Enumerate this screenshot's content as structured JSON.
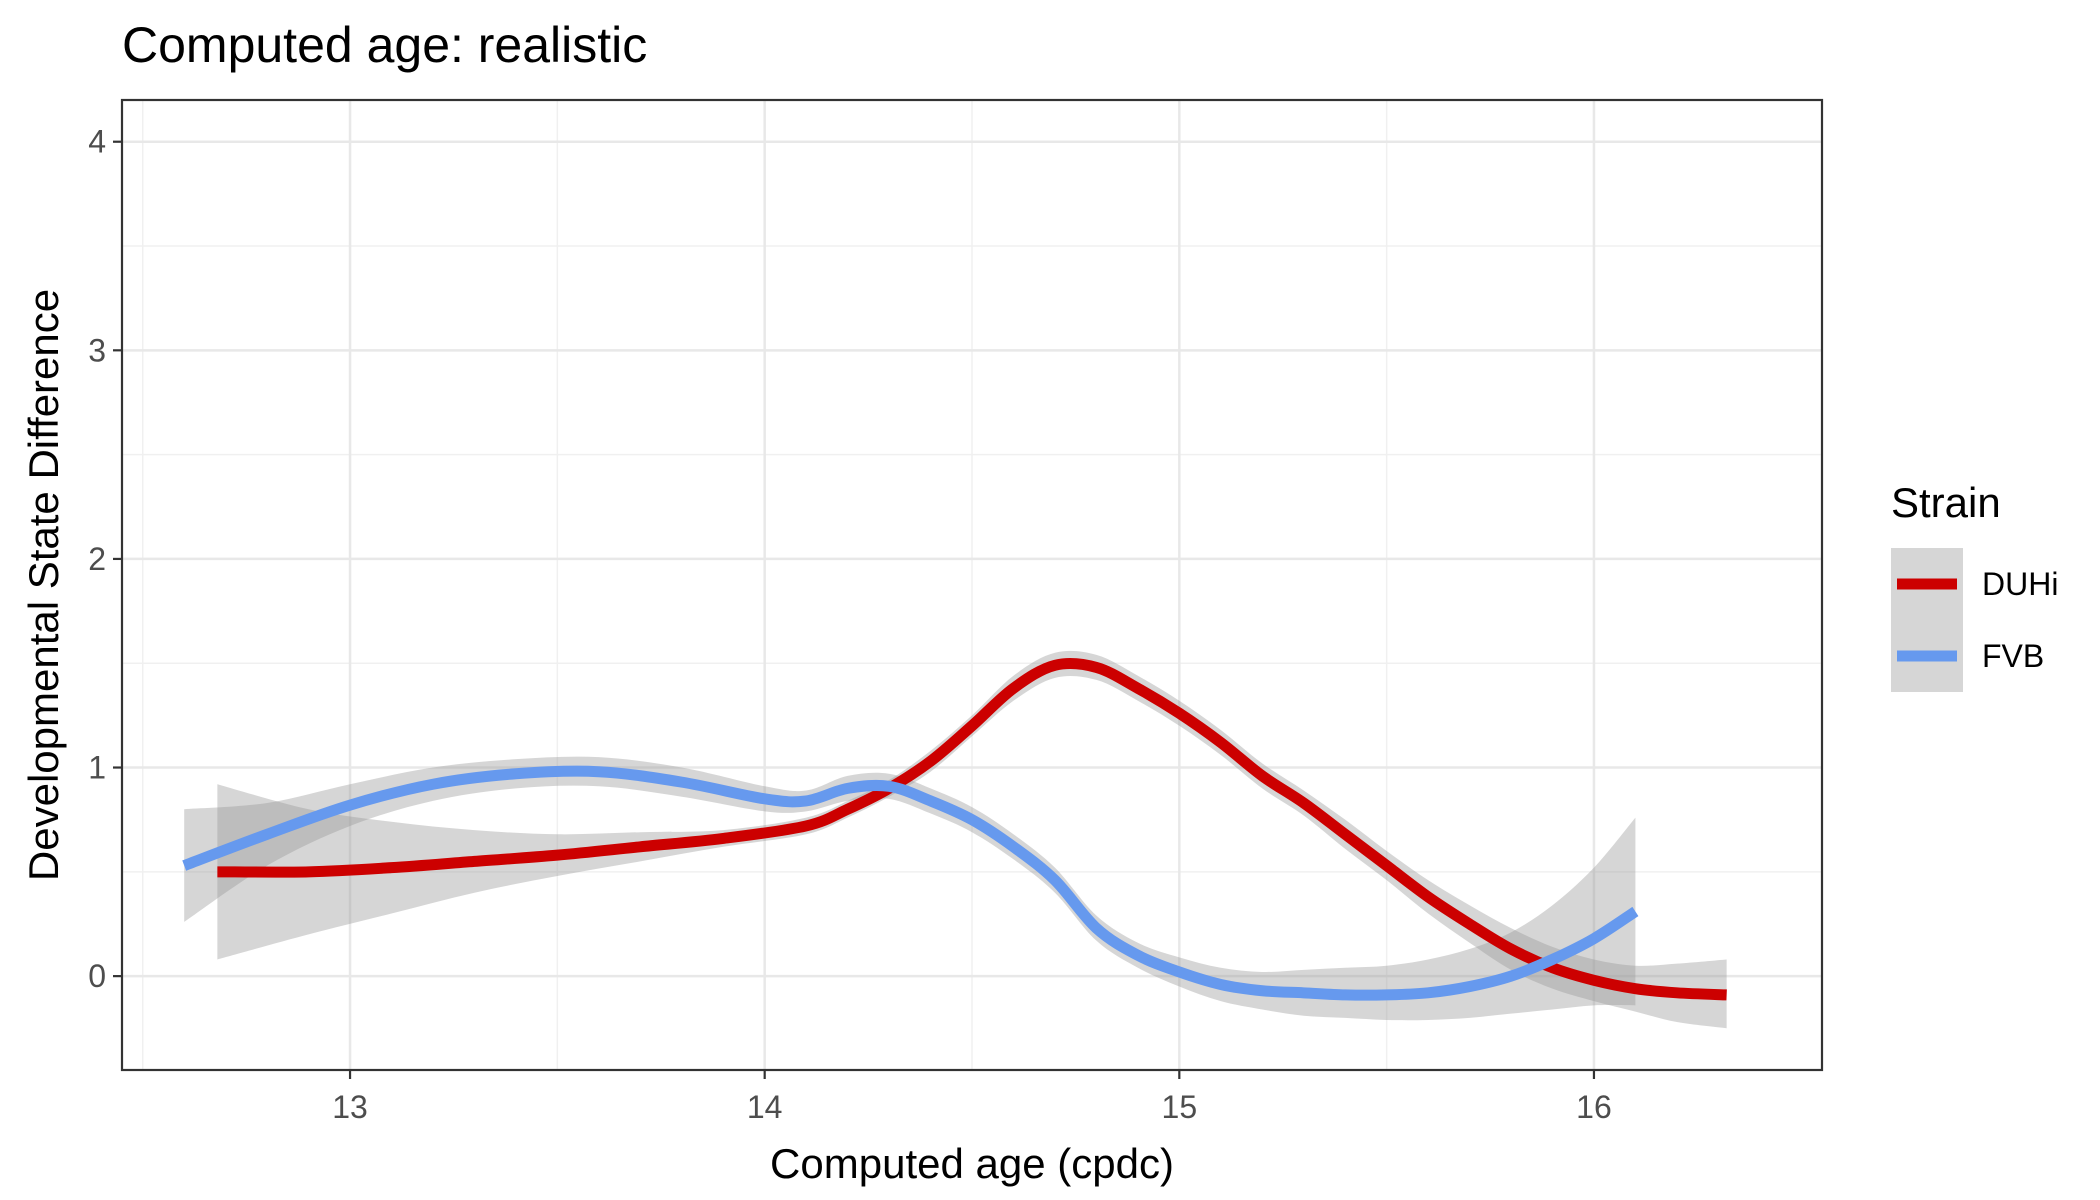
{
  "chart_data": {
    "type": "line",
    "title": "Computed age: realistic",
    "xlabel": "Computed age (cpdc)",
    "ylabel": "Developmental State Difference",
    "xlim": [
      12.45,
      16.55
    ],
    "ylim": [
      -0.45,
      4.2
    ],
    "x_ticks": [
      13,
      14,
      15,
      16
    ],
    "x_tick_labels": [
      "13",
      "14",
      "15",
      "16"
    ],
    "x_minor_ticks": [
      12.5,
      13.5,
      14.5,
      15.5
    ],
    "y_ticks": [
      0,
      1,
      2,
      3,
      4
    ],
    "y_tick_labels": [
      "0",
      "1",
      "2",
      "3",
      "4"
    ],
    "y_minor_ticks": [
      0.5,
      1.5,
      2.5,
      3.5
    ],
    "grid": true,
    "legend": {
      "title": "Strain",
      "position": "right"
    },
    "series": [
      {
        "name": "DUHi",
        "color": "#cc0000",
        "x": [
          12.68,
          12.9,
          13.1,
          13.3,
          13.5,
          13.7,
          13.9,
          14.1,
          14.2,
          14.3,
          14.4,
          14.5,
          14.6,
          14.7,
          14.8,
          14.9,
          15.0,
          15.1,
          15.2,
          15.3,
          15.4,
          15.5,
          15.6,
          15.7,
          15.8,
          15.9,
          16.0,
          16.1,
          16.2,
          16.32
        ],
        "y": [
          0.5,
          0.5,
          0.52,
          0.55,
          0.58,
          0.62,
          0.66,
          0.72,
          0.8,
          0.9,
          1.03,
          1.2,
          1.38,
          1.49,
          1.48,
          1.38,
          1.26,
          1.12,
          0.96,
          0.83,
          0.68,
          0.53,
          0.38,
          0.25,
          0.13,
          0.04,
          -0.02,
          -0.06,
          -0.08,
          -0.09
        ],
        "lower": [
          0.08,
          0.2,
          0.3,
          0.4,
          0.48,
          0.55,
          0.62,
          0.68,
          0.76,
          0.86,
          0.98,
          1.15,
          1.32,
          1.43,
          1.42,
          1.32,
          1.2,
          1.06,
          0.9,
          0.77,
          0.61,
          0.46,
          0.3,
          0.16,
          0.03,
          -0.06,
          -0.12,
          -0.17,
          -0.22,
          -0.25
        ],
        "upper": [
          0.92,
          0.8,
          0.74,
          0.7,
          0.68,
          0.69,
          0.7,
          0.76,
          0.84,
          0.94,
          1.08,
          1.25,
          1.44,
          1.55,
          1.54,
          1.44,
          1.32,
          1.18,
          1.02,
          0.89,
          0.75,
          0.6,
          0.46,
          0.34,
          0.23,
          0.14,
          0.08,
          0.05,
          0.06,
          0.08
        ]
      },
      {
        "name": "FVB",
        "color": "#6699ee",
        "x": [
          12.6,
          12.8,
          13.0,
          13.2,
          13.4,
          13.6,
          13.8,
          14.0,
          14.1,
          14.2,
          14.3,
          14.4,
          14.5,
          14.6,
          14.7,
          14.8,
          14.9,
          15.0,
          15.1,
          15.2,
          15.3,
          15.4,
          15.5,
          15.6,
          15.7,
          15.8,
          15.9,
          16.0,
          16.1
        ],
        "y": [
          0.53,
          0.68,
          0.82,
          0.92,
          0.97,
          0.98,
          0.93,
          0.85,
          0.84,
          0.9,
          0.91,
          0.84,
          0.75,
          0.62,
          0.46,
          0.23,
          0.1,
          0.02,
          -0.04,
          -0.07,
          -0.08,
          -0.09,
          -0.09,
          -0.08,
          -0.05,
          0.0,
          0.08,
          0.18,
          0.31
        ],
        "lower": [
          0.26,
          0.53,
          0.72,
          0.84,
          0.9,
          0.91,
          0.86,
          0.79,
          0.79,
          0.84,
          0.85,
          0.78,
          0.69,
          0.56,
          0.4,
          0.17,
          0.04,
          -0.05,
          -0.12,
          -0.16,
          -0.19,
          -0.2,
          -0.21,
          -0.21,
          -0.2,
          -0.18,
          -0.16,
          -0.14,
          -0.14
        ],
        "upper": [
          0.8,
          0.83,
          0.92,
          1.0,
          1.04,
          1.05,
          1.0,
          0.91,
          0.89,
          0.96,
          0.97,
          0.9,
          0.81,
          0.68,
          0.52,
          0.29,
          0.16,
          0.09,
          0.04,
          0.02,
          0.03,
          0.04,
          0.05,
          0.08,
          0.13,
          0.21,
          0.34,
          0.52,
          0.76
        ]
      }
    ]
  }
}
